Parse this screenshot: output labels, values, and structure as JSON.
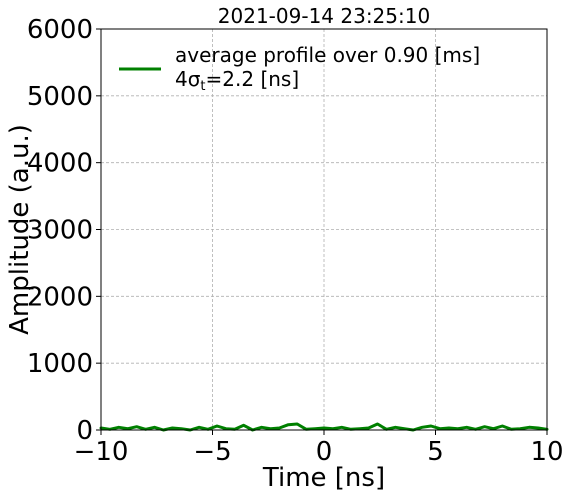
{
  "chart_data": {
    "type": "line",
    "title": "2021-09-14 23:25:10",
    "xlabel": "Time [ns]",
    "ylabel": "Amplitude (a.u.)",
    "xlim": [
      -10,
      10
    ],
    "ylim": [
      0,
      6000
    ],
    "xticks": [
      -10,
      -5,
      0,
      5,
      10
    ],
    "yticks": [
      0,
      1000,
      2000,
      3000,
      4000,
      5000,
      6000
    ],
    "xtick_labels": [
      "−10",
      "−5",
      "0",
      "5",
      "10"
    ],
    "ytick_labels": [
      "0",
      "1000",
      "2000",
      "3000",
      "4000",
      "5000",
      "6000"
    ],
    "grid": true,
    "legend_position": "top-left",
    "legend": {
      "line1": "average profile over 0.90 [ms]",
      "line2_prefix": "4σ",
      "line2_sub": "t",
      "line2_suffix": "=2.2 [ns]"
    },
    "colors": {
      "series": "#008000",
      "grid": "#b0b0b0"
    },
    "series": [
      {
        "x": [
          -10.0,
          -9.6,
          -9.2,
          -8.8,
          -8.4,
          -8.0,
          -7.6,
          -7.2,
          -6.8,
          -6.4,
          -6.0,
          -5.6,
          -5.2,
          -4.8,
          -4.4,
          -4.0,
          -3.6,
          -3.2,
          -2.8,
          -2.4,
          -2.0,
          -1.6,
          -1.2,
          -0.8,
          -0.4,
          0.0,
          0.4,
          0.8,
          1.2,
          1.6,
          2.0,
          2.4,
          2.8,
          3.2,
          3.6,
          4.0,
          4.4,
          4.8,
          5.2,
          5.6,
          6.0,
          6.4,
          6.8,
          7.2,
          7.6,
          8.0,
          8.4,
          8.8,
          9.2,
          9.6,
          10.0
        ],
        "y": [
          30,
          10,
          40,
          20,
          50,
          10,
          40,
          0,
          30,
          20,
          0,
          40,
          10,
          60,
          20,
          10,
          70,
          0,
          40,
          20,
          30,
          80,
          90,
          10,
          20,
          30,
          20,
          40,
          10,
          20,
          30,
          90,
          10,
          40,
          20,
          0,
          40,
          60,
          20,
          30,
          20,
          40,
          10,
          50,
          20,
          60,
          10,
          20,
          40,
          30,
          10
        ]
      }
    ]
  }
}
